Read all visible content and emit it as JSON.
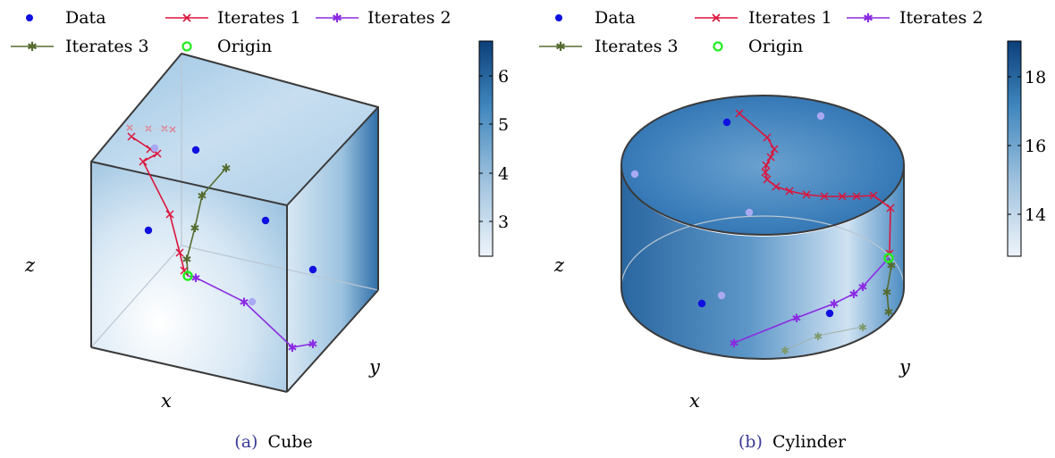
{
  "colors": {
    "data": "#1010e0",
    "iterates1": "#dc143c",
    "iterates2": "#8a2be2",
    "iterates3": "#556b2f",
    "origin": "#22ee22",
    "colormap_low": "#e8f0f8",
    "colormap_high": "#0c3f7a"
  },
  "legend": {
    "data": "Data",
    "iterates1": "Iterates 1",
    "iterates2": "Iterates 2",
    "iterates3": "Iterates 3",
    "origin": "Origin"
  },
  "chart_data": [
    {
      "type": "scatter",
      "kind": "3d-scatter-with-iterate-paths",
      "domain_shape": "cube",
      "caption_label": "(a)",
      "caption_text": "Cube",
      "axis_labels": {
        "x": "x",
        "y": "y",
        "z": "z"
      },
      "colorbar": {
        "ticks": [
          "3",
          "4",
          "5",
          "6"
        ],
        "range": [
          2.3,
          6.6
        ]
      },
      "series": [
        {
          "name": "Data",
          "marker": "dot",
          "count": 9
        },
        {
          "name": "Iterates 1",
          "marker": "x",
          "points": 12
        },
        {
          "name": "Iterates 2",
          "marker": "star",
          "points": 6
        },
        {
          "name": "Iterates 3",
          "marker": "star",
          "points": 6
        },
        {
          "name": "Origin",
          "marker": "ring",
          "points": 1
        }
      ]
    },
    {
      "type": "scatter",
      "kind": "3d-scatter-with-iterate-paths",
      "domain_shape": "cylinder",
      "caption_label": "(b)",
      "caption_text": "Cylinder",
      "axis_labels": {
        "x": "x",
        "y": "y",
        "z": "z"
      },
      "colorbar": {
        "ticks": [
          "14",
          "16",
          "18"
        ],
        "range": [
          12.7,
          19.0
        ]
      },
      "series": [
        {
          "name": "Data",
          "marker": "dot",
          "count": 9
        },
        {
          "name": "Iterates 1",
          "marker": "x",
          "points": 20
        },
        {
          "name": "Iterates 2",
          "marker": "star",
          "points": 8
        },
        {
          "name": "Iterates 3",
          "marker": "star",
          "points": 6
        },
        {
          "name": "Origin",
          "marker": "ring",
          "points": 1
        }
      ]
    }
  ]
}
